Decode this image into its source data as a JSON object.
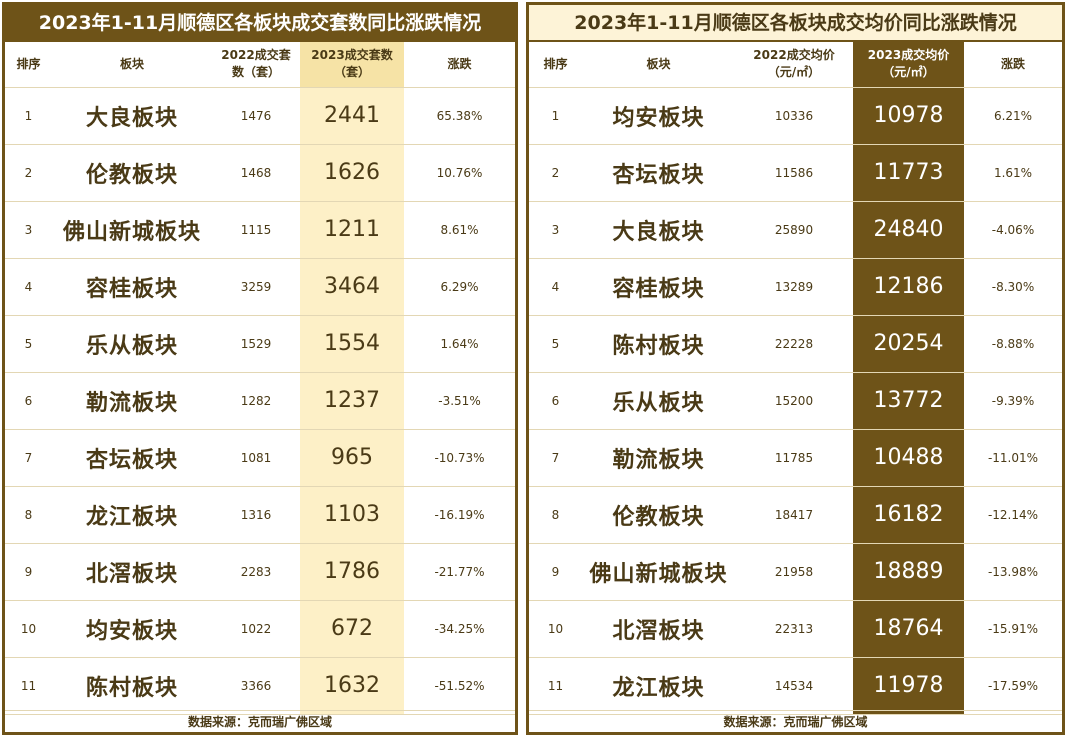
{
  "sales_table": {
    "title": "2023年1-11月顺德区各板块成交套数同比涨跌情况",
    "headers": {
      "rank": "排序",
      "name": "板块",
      "prev_line1": "2022成交套",
      "prev_line2": "数（套）",
      "cur_line1": "2023成交套数",
      "cur_line2": "（套）",
      "change": "涨跌"
    },
    "rows": [
      {
        "rank": "1",
        "name": "大良板块",
        "prev": "1476",
        "cur": "2441",
        "change": "65.38%"
      },
      {
        "rank": "2",
        "name": "伦教板块",
        "prev": "1468",
        "cur": "1626",
        "change": "10.76%"
      },
      {
        "rank": "3",
        "name": "佛山新城板块",
        "prev": "1115",
        "cur": "1211",
        "change": "8.61%"
      },
      {
        "rank": "4",
        "name": "容桂板块",
        "prev": "3259",
        "cur": "3464",
        "change": "6.29%"
      },
      {
        "rank": "5",
        "name": "乐从板块",
        "prev": "1529",
        "cur": "1554",
        "change": "1.64%"
      },
      {
        "rank": "6",
        "name": "勒流板块",
        "prev": "1282",
        "cur": "1237",
        "change": "-3.51%"
      },
      {
        "rank": "7",
        "name": "杏坛板块",
        "prev": "1081",
        "cur": "965",
        "change": "-10.73%"
      },
      {
        "rank": "8",
        "name": "龙江板块",
        "prev": "1316",
        "cur": "1103",
        "change": "-16.19%"
      },
      {
        "rank": "9",
        "name": "北滘板块",
        "prev": "2283",
        "cur": "1786",
        "change": "-21.77%"
      },
      {
        "rank": "10",
        "name": "均安板块",
        "prev": "1022",
        "cur": "672",
        "change": "-34.25%"
      },
      {
        "rank": "11",
        "name": "陈村板块",
        "prev": "3366",
        "cur": "1632",
        "change": "-51.52%"
      }
    ],
    "source": "数据来源：克而瑞广佛区域"
  },
  "price_table": {
    "title": "2023年1-11月顺德区各板块成交均价同比涨跌情况",
    "headers": {
      "rank": "排序",
      "name": "板块",
      "prev_line1": "2022成交均价",
      "prev_line2": "（元/㎡）",
      "cur_line1": "2023成交均价",
      "cur_line2": "（元/㎡）",
      "change": "涨跌"
    },
    "rows": [
      {
        "rank": "1",
        "name": "均安板块",
        "prev": "10336",
        "cur": "10978",
        "change": "6.21%"
      },
      {
        "rank": "2",
        "name": "杏坛板块",
        "prev": "11586",
        "cur": "11773",
        "change": "1.61%"
      },
      {
        "rank": "3",
        "name": "大良板块",
        "prev": "25890",
        "cur": "24840",
        "change": "-4.06%"
      },
      {
        "rank": "4",
        "name": "容桂板块",
        "prev": "13289",
        "cur": "12186",
        "change": "-8.30%"
      },
      {
        "rank": "5",
        "name": "陈村板块",
        "prev": "22228",
        "cur": "20254",
        "change": "-8.88%"
      },
      {
        "rank": "6",
        "name": "乐从板块",
        "prev": "15200",
        "cur": "13772",
        "change": "-9.39%"
      },
      {
        "rank": "7",
        "name": "勒流板块",
        "prev": "11785",
        "cur": "10488",
        "change": "-11.01%"
      },
      {
        "rank": "8",
        "name": "伦教板块",
        "prev": "18417",
        "cur": "16182",
        "change": "-12.14%"
      },
      {
        "rank": "9",
        "name": "佛山新城板块",
        "prev": "21958",
        "cur": "18889",
        "change": "-13.98%"
      },
      {
        "rank": "10",
        "name": "北滘板块",
        "prev": "22313",
        "cur": "18764",
        "change": "-15.91%"
      },
      {
        "rank": "11",
        "name": "龙江板块",
        "prev": "14534",
        "cur": "11978",
        "change": "-17.59%"
      }
    ],
    "source": "数据来源：克而瑞广佛区域"
  },
  "colors": {
    "dark_brown": "#6e5318",
    "highlight_light": "#fdf0c7",
    "text": "#4a3a16"
  }
}
